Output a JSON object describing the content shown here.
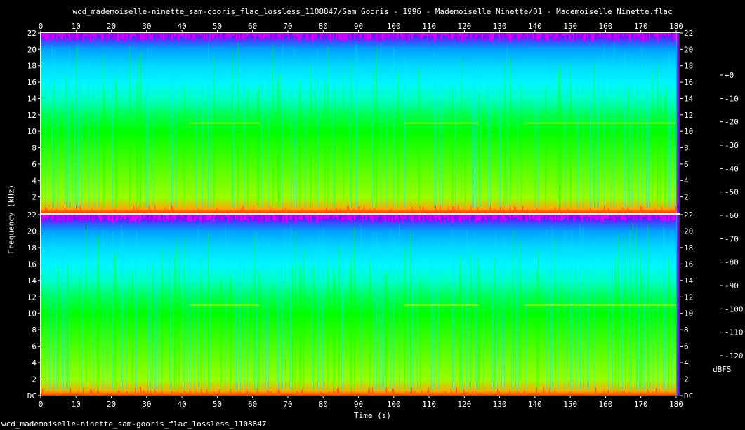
{
  "title": "wcd_mademoiselle-ninette_sam-gooris_flac_lossless_1108847/Sam Gooris - 1996 - Mademoiselle Ninette/01 - Mademoiselle Ninette.flac",
  "footer": "wcd_mademoiselle-ninette_sam-gooris_flac_lossless_1108847",
  "chart_data": {
    "type": "heatmap",
    "title": "wcd_mademoiselle-ninette_sam-gooris_flac_lossless_1108847/Sam Gooris - 1996 - Mademoiselle Ninette/01 - Mademoiselle Ninette.flac",
    "xlabel": "Time (s)",
    "ylabel": "Frequency (kHz)",
    "xlim": [
      0,
      181
    ],
    "ylim": [
      0,
      22
    ],
    "x_ticks": [
      0,
      10,
      20,
      30,
      40,
      50,
      60,
      70,
      80,
      90,
      100,
      110,
      120,
      130,
      140,
      150,
      160,
      170,
      180
    ],
    "y_tick_labels": [
      "DC",
      "2",
      "4",
      "6",
      "8",
      "10",
      "12",
      "14",
      "16",
      "18",
      "20",
      "22"
    ],
    "y_ticks": [
      0,
      2,
      4,
      6,
      8,
      10,
      12,
      14,
      16,
      18,
      20,
      22
    ],
    "channels": 2,
    "colorbar": {
      "label": "dBFS",
      "ticks": [
        "+0",
        "-10",
        "-20",
        "-30",
        "-40",
        "-50",
        "-60",
        "-70",
        "-80",
        "-90",
        "-100",
        "-110",
        "-120"
      ],
      "range": [
        -120,
        0
      ]
    },
    "colormap_stops": [
      "#000000",
      "#5a0070",
      "#ff00ff",
      "#0000ff",
      "#00b4ff",
      "#00ffff",
      "#00ff00",
      "#ffff00",
      "#ff0000",
      "#ffffff"
    ],
    "level_map": {
      "22": -85,
      "20": -68,
      "18": -60,
      "16": -55,
      "14": -50,
      "12": -44,
      "10": -40,
      "8": -38,
      "6": -36,
      "2": -32,
      "0.5": -22
    },
    "end_time_s": 180,
    "grid": false
  }
}
